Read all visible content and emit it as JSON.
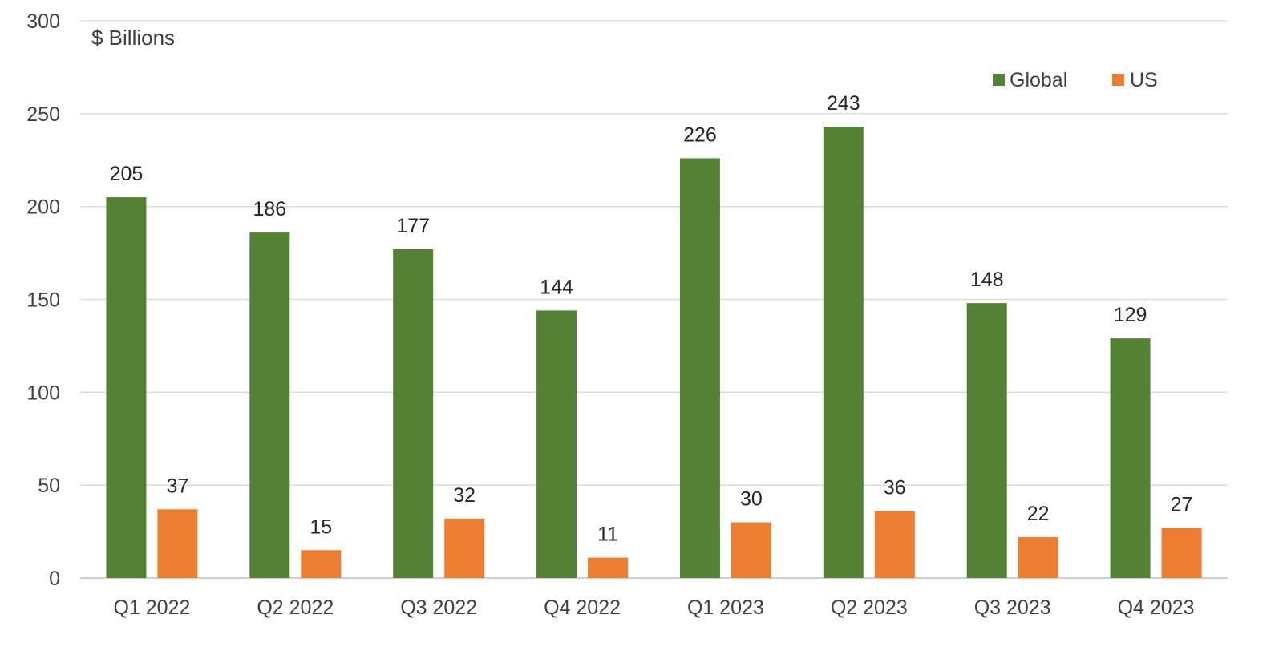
{
  "chart_data": {
    "type": "bar",
    "ylabel": "$ Billions",
    "ylim": [
      0,
      300
    ],
    "yticks": [
      0,
      50,
      100,
      150,
      200,
      250,
      300
    ],
    "grid": true,
    "legend_position": "top-right",
    "categories": [
      "Q1 2022",
      "Q2 2022",
      "Q3 2022",
      "Q4 2022",
      "Q1 2023",
      "Q2 2023",
      "Q3 2023",
      "Q4 2023"
    ],
    "series": [
      {
        "name": "Global",
        "color": "#548235",
        "values": [
          205,
          186,
          177,
          144,
          226,
          243,
          148,
          129
        ]
      },
      {
        "name": "US",
        "color": "#ed7d31",
        "values": [
          37,
          15,
          32,
          11,
          30,
          36,
          22,
          27
        ]
      }
    ]
  }
}
